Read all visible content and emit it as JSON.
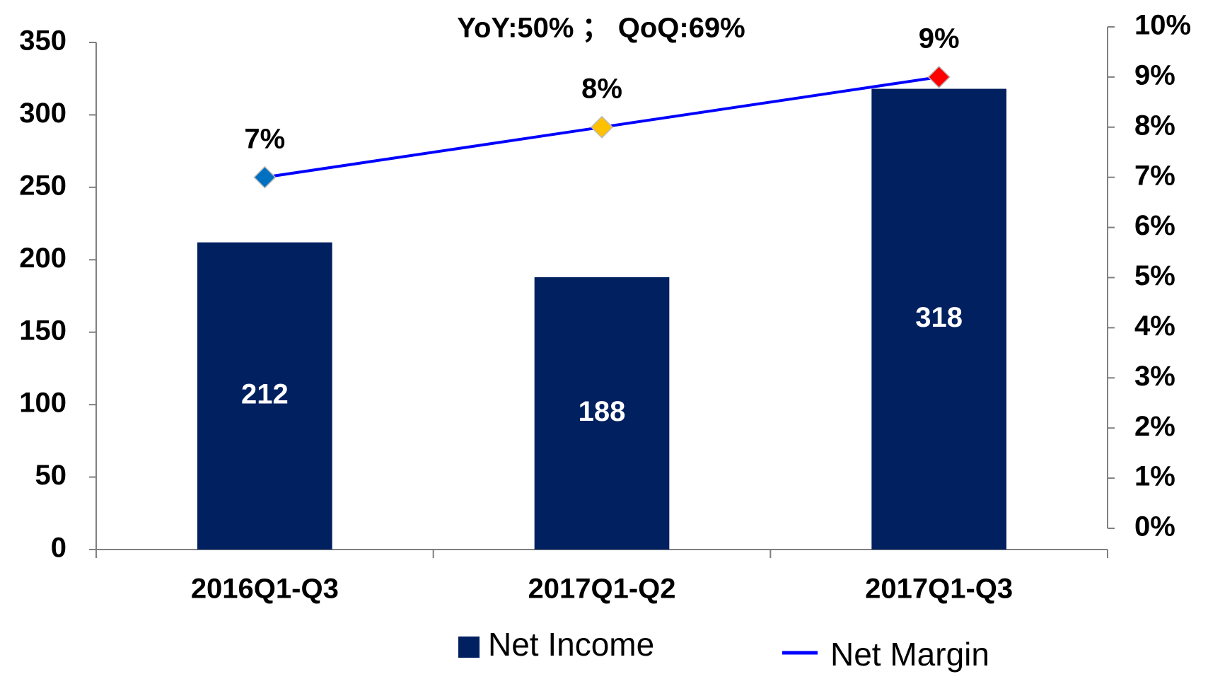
{
  "chart_data": {
    "type": "bar",
    "annotation": "YoY:50% ； QoQ:69%",
    "categories": [
      "2016Q1-Q3",
      "2017Q1-Q2",
      "2017Q1-Q3"
    ],
    "series": [
      {
        "name": "Net Income",
        "type": "bar",
        "color": "#002060",
        "values": [
          212,
          188,
          318
        ]
      },
      {
        "name": "Net Margin",
        "type": "line",
        "axis": "y2",
        "color": "#0000ff",
        "values": [
          7,
          8,
          9
        ],
        "value_labels": [
          "7%",
          "8%",
          "9%"
        ],
        "marker_colors": [
          "#0070c0",
          "#ffc000",
          "#ff0000"
        ]
      }
    ],
    "ylim": [
      0,
      350
    ],
    "yticks": [
      0,
      50,
      100,
      150,
      200,
      250,
      300,
      350
    ],
    "y2lim": [
      0,
      10
    ],
    "y2ticks": [
      {
        "value": 0,
        "label": "0%"
      },
      {
        "value": 1,
        "label": "1%"
      },
      {
        "value": 2,
        "label": "2%"
      },
      {
        "value": 3,
        "label": "3%"
      },
      {
        "value": 4,
        "label": "4%"
      },
      {
        "value": 5,
        "label": "5%"
      },
      {
        "value": 6,
        "label": "6%"
      },
      {
        "value": 7,
        "label": "7%"
      },
      {
        "value": 8,
        "label": "8%"
      },
      {
        "value": 9,
        "label": "9%"
      },
      {
        "value": 10,
        "label": "10%"
      }
    ],
    "grid": false,
    "legend": "bottom"
  }
}
